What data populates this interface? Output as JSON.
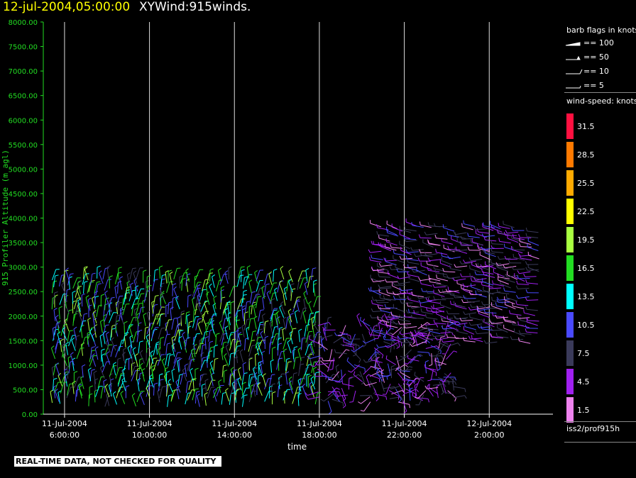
{
  "header": {
    "datetime": "12-jul-2004,05:00:00",
    "title": "XYWind:915winds."
  },
  "legend": {
    "barb_title": "barb flags in knots",
    "barbs": [
      "== 100",
      "== 50",
      "== 10",
      "== 5"
    ],
    "speed_title": "wind-speed: knots",
    "colors": [
      {
        "label": "31.5",
        "color": "#ff1040"
      },
      {
        "label": "28.5",
        "color": "#ff7a00"
      },
      {
        "label": "25.5",
        "color": "#ffaa00"
      },
      {
        "label": "22.5",
        "color": "#ffff00"
      },
      {
        "label": "19.5",
        "color": "#a8ff40"
      },
      {
        "label": "16.5",
        "color": "#22dd22"
      },
      {
        "label": "13.5",
        "color": "#00ffff"
      },
      {
        "label": "10.5",
        "color": "#4a4aff"
      },
      {
        "label": "7.5",
        "color": "#3a3a5a"
      },
      {
        "label": "4.5",
        "color": "#a020f0"
      },
      {
        "label": "1.5",
        "color": "#ee82ee"
      }
    ],
    "source": "iss2/prof915h"
  },
  "footer": "REAL-TIME DATA, NOT CHECKED FOR QUALITY",
  "chart_data": {
    "type": "scatter",
    "subtype": "wind-barbs",
    "ylabel": "915 Profiler Altitude (m agl)",
    "xlabel": "time",
    "ylim": [
      0,
      8000
    ],
    "yticks": [
      "0.00",
      "500.00",
      "1000.00",
      "1500.00",
      "2000.00",
      "2500.00",
      "3000.00",
      "3500.00",
      "4000.00",
      "4500.00",
      "5000.00",
      "5500.00",
      "6000.00",
      "6500.00",
      "7000.00",
      "7500.00",
      "8000.00"
    ],
    "xlim": [
      "11-Jul-2004 05:00",
      "12-Jul-2004 05:00"
    ],
    "xticks": [
      {
        "date": "11-Jul-2004",
        "time": "6:00:00"
      },
      {
        "date": "11-Jul-2004",
        "time": "10:00:00"
      },
      {
        "date": "11-Jul-2004",
        "time": "14:00:00"
      },
      {
        "date": "11-Jul-2004",
        "time": "18:00:00"
      },
      {
        "date": "11-Jul-2004",
        "time": "22:00:00"
      },
      {
        "date": "12-Jul-2004",
        "time": "2:00:00"
      }
    ],
    "xgrid": true,
    "ygrid": false,
    "color_scale": "wind speed (knots)",
    "regimes": [
      {
        "hours": [
          5.5,
          18.0
        ],
        "altitude_m": [
          200,
          2800
        ],
        "speed_knots": [
          7.5,
          19.5
        ],
        "direction": "southerly"
      },
      {
        "hours": [
          18.0,
          24.5
        ],
        "altitude_m": [
          300,
          1800
        ],
        "speed_knots": [
          1.5,
          10.5
        ],
        "direction": "variable"
      },
      {
        "hours": [
          21.0,
          28.5
        ],
        "altitude_m": [
          1500,
          3900
        ],
        "speed_knots": [
          1.5,
          10.5
        ],
        "direction": "westerly"
      }
    ]
  }
}
